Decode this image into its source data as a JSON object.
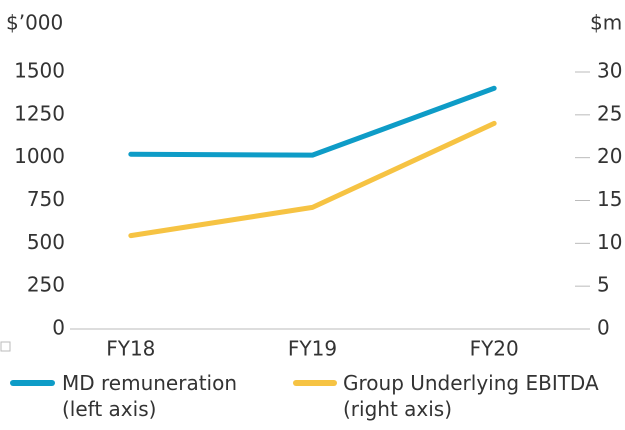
{
  "chart_data": {
    "type": "line",
    "ylabel": "$’000",
    "y2label": "$m",
    "categories": [
      "FY18",
      "FY19",
      "FY20"
    ],
    "series": [
      {
        "name": "MD remuneration (left axis)",
        "color": "#0e9cc7",
        "values": [
          1020,
          1015,
          1405
        ]
      },
      {
        "name": "Group Underlying EBITDA (right axis)",
        "color": "#f6c343",
        "axis": "y2",
        "values": [
          10.9,
          14.2,
          24.0
        ]
      }
    ],
    "ylim": [
      0,
      1500
    ],
    "yticks": [
      0,
      250,
      500,
      750,
      1000,
      1250,
      1500
    ],
    "y2lim": [
      0,
      30
    ],
    "y2ticks": [
      0,
      5,
      10,
      15,
      20,
      25,
      30
    ]
  }
}
